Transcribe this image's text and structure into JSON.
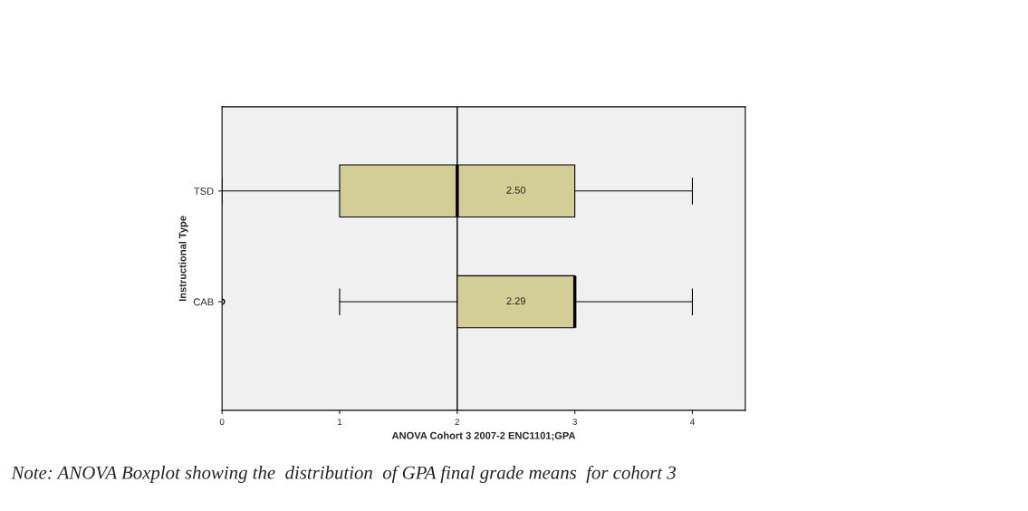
{
  "chart_data": {
    "type": "box",
    "orientation": "horizontal",
    "xlabel": "ANOVA Cohort 3 2007-2 ENC1101;GPA",
    "ylabel": "Instructional Type",
    "categories": [
      "TSD",
      "CAB"
    ],
    "boxes": [
      {
        "low": 0,
        "q1": 1,
        "median": 2,
        "q3": 3,
        "high": 4
      },
      {
        "low": 1,
        "q1": 2,
        "median": 3,
        "q3": 3,
        "high": 4,
        "outliers": [
          0
        ]
      }
    ],
    "colors": [
      "#d3ce97",
      "#d3ce97"
    ],
    "xlim": [
      0,
      4.45
    ],
    "xticks": [
      0,
      1,
      2,
      3,
      4
    ],
    "grid": false,
    "ref_lines": [
      {
        "axis": "x",
        "value": 2,
        "color": "#000000"
      }
    ],
    "value_labels": [
      "2.50",
      "2.29"
    ],
    "annotations": [
      "Note: ANOVA Boxplot showing the  distribution  of GPA final grade means  for cohort 3"
    ]
  }
}
